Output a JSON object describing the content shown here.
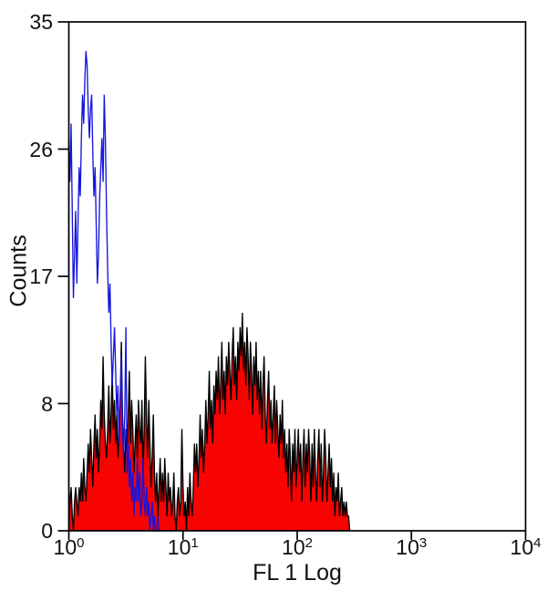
{
  "figure": {
    "background": "#ffffff",
    "axis_color": "#000000"
  },
  "chart_data": {
    "type": "area",
    "subtype": "flow-cytometry-overlay-histogram",
    "title": "",
    "xlabel": "FL 1 Log",
    "ylabel": "Counts",
    "x_scale": "log10",
    "xlim_log": [
      0,
      4
    ],
    "ylim": [
      0,
      35
    ],
    "grid": false,
    "legend": "none",
    "x_ticks": [
      {
        "base": "10",
        "exp": "0",
        "log_value": 0
      },
      {
        "base": "10",
        "exp": "1",
        "log_value": 1
      },
      {
        "base": "10",
        "exp": "2",
        "log_value": 2
      },
      {
        "base": "10",
        "exp": "3",
        "log_value": 3
      },
      {
        "base": "10",
        "exp": "4",
        "log_value": 4
      }
    ],
    "y_ticks": [
      {
        "label": "0",
        "value": 0
      },
      {
        "label": "8",
        "value": 8.75
      },
      {
        "label": "17",
        "value": 17.5
      },
      {
        "label": "26",
        "value": 26.25
      },
      {
        "label": "35",
        "value": 35
      }
    ],
    "series": [
      {
        "name": "red-filled-histogram",
        "style": "filled",
        "color": "#f60302",
        "outline": "#000000",
        "peak_summary": "bimodal: cluster 1-7 (max ~13 counts), valley 7-14, main peak ~36-40 (max ~15 counts), tail ends ~280",
        "log_x_start": 0,
        "log_x_step": 0.01,
        "counts": [
          0,
          2,
          3,
          1,
          0,
          2,
          3,
          2,
          1,
          3,
          2,
          4,
          2,
          5,
          3,
          2,
          4,
          6,
          4,
          7,
          5,
          3,
          6,
          8,
          5,
          7,
          4,
          6,
          9,
          7,
          12,
          8,
          6,
          5,
          7,
          10,
          6,
          8,
          11,
          7,
          9,
          6,
          8,
          5,
          7,
          9,
          13,
          8,
          6,
          4,
          7,
          5,
          8,
          11,
          6,
          9,
          7,
          4,
          6,
          8,
          5,
          9,
          7,
          6,
          9,
          4,
          7,
          12,
          8,
          5,
          9,
          6,
          3,
          5,
          8,
          4,
          2,
          4,
          1,
          3,
          5,
          2,
          4,
          2,
          5,
          3,
          1,
          4,
          2,
          3,
          1,
          2,
          4,
          1,
          0,
          2,
          3,
          1,
          2,
          7,
          3,
          1,
          2,
          0,
          3,
          1,
          4,
          2,
          1,
          3,
          6,
          4,
          6,
          3,
          5,
          8,
          5,
          7,
          4,
          6,
          9,
          6,
          8,
          11,
          7,
          9,
          6,
          10,
          8,
          11,
          9,
          12,
          8,
          10,
          13,
          9,
          11,
          8,
          12,
          10,
          13,
          11,
          9,
          12,
          14,
          10,
          12,
          9,
          13,
          11,
          14,
          12,
          15,
          11,
          13,
          10,
          14,
          12,
          9,
          13,
          11,
          8,
          12,
          10,
          13,
          9,
          11,
          8,
          11,
          7,
          10,
          12,
          8,
          6,
          9,
          11,
          7,
          9,
          6,
          8,
          10,
          6,
          9,
          7,
          5,
          8,
          6,
          9,
          5,
          7,
          4,
          6,
          3,
          7,
          5,
          2,
          6,
          4,
          7,
          3,
          5,
          7,
          4,
          6,
          2,
          5,
          7,
          3,
          6,
          4,
          7,
          5,
          2,
          6,
          3,
          7,
          4,
          2,
          5,
          7,
          3,
          6,
          2,
          4,
          7,
          5,
          2,
          4,
          6,
          3,
          5,
          2,
          4,
          1,
          3,
          2,
          4,
          1,
          2,
          3,
          1,
          2,
          1,
          2,
          1,
          1,
          0
        ]
      },
      {
        "name": "blue-open-histogram",
        "style": "line",
        "color": "#1515dd",
        "outline": "#1515dd",
        "peak_summary": "unimodal near x~1.4 (max ~33 counts), descends to baseline by x~6",
        "log_x_start": 0,
        "log_x_step": 0.01,
        "counts": [
          27,
          24,
          28,
          22,
          16,
          19,
          22,
          17,
          21,
          25,
          23,
          27,
          30,
          28,
          31,
          33,
          32,
          29,
          27,
          29,
          30,
          26,
          23,
          25,
          21,
          17,
          19,
          23,
          25,
          27,
          24,
          30,
          27,
          22,
          18,
          15,
          17,
          13,
          10,
          12,
          14,
          11,
          8,
          10,
          6,
          9,
          12,
          7,
          5,
          8,
          14,
          4,
          6,
          3,
          5,
          2,
          4,
          1,
          3,
          2,
          5,
          2,
          4,
          1,
          2,
          5,
          2,
          1,
          3,
          1,
          2,
          0,
          1,
          2,
          0,
          1,
          0,
          0,
          1,
          0,
          0
        ]
      }
    ]
  }
}
